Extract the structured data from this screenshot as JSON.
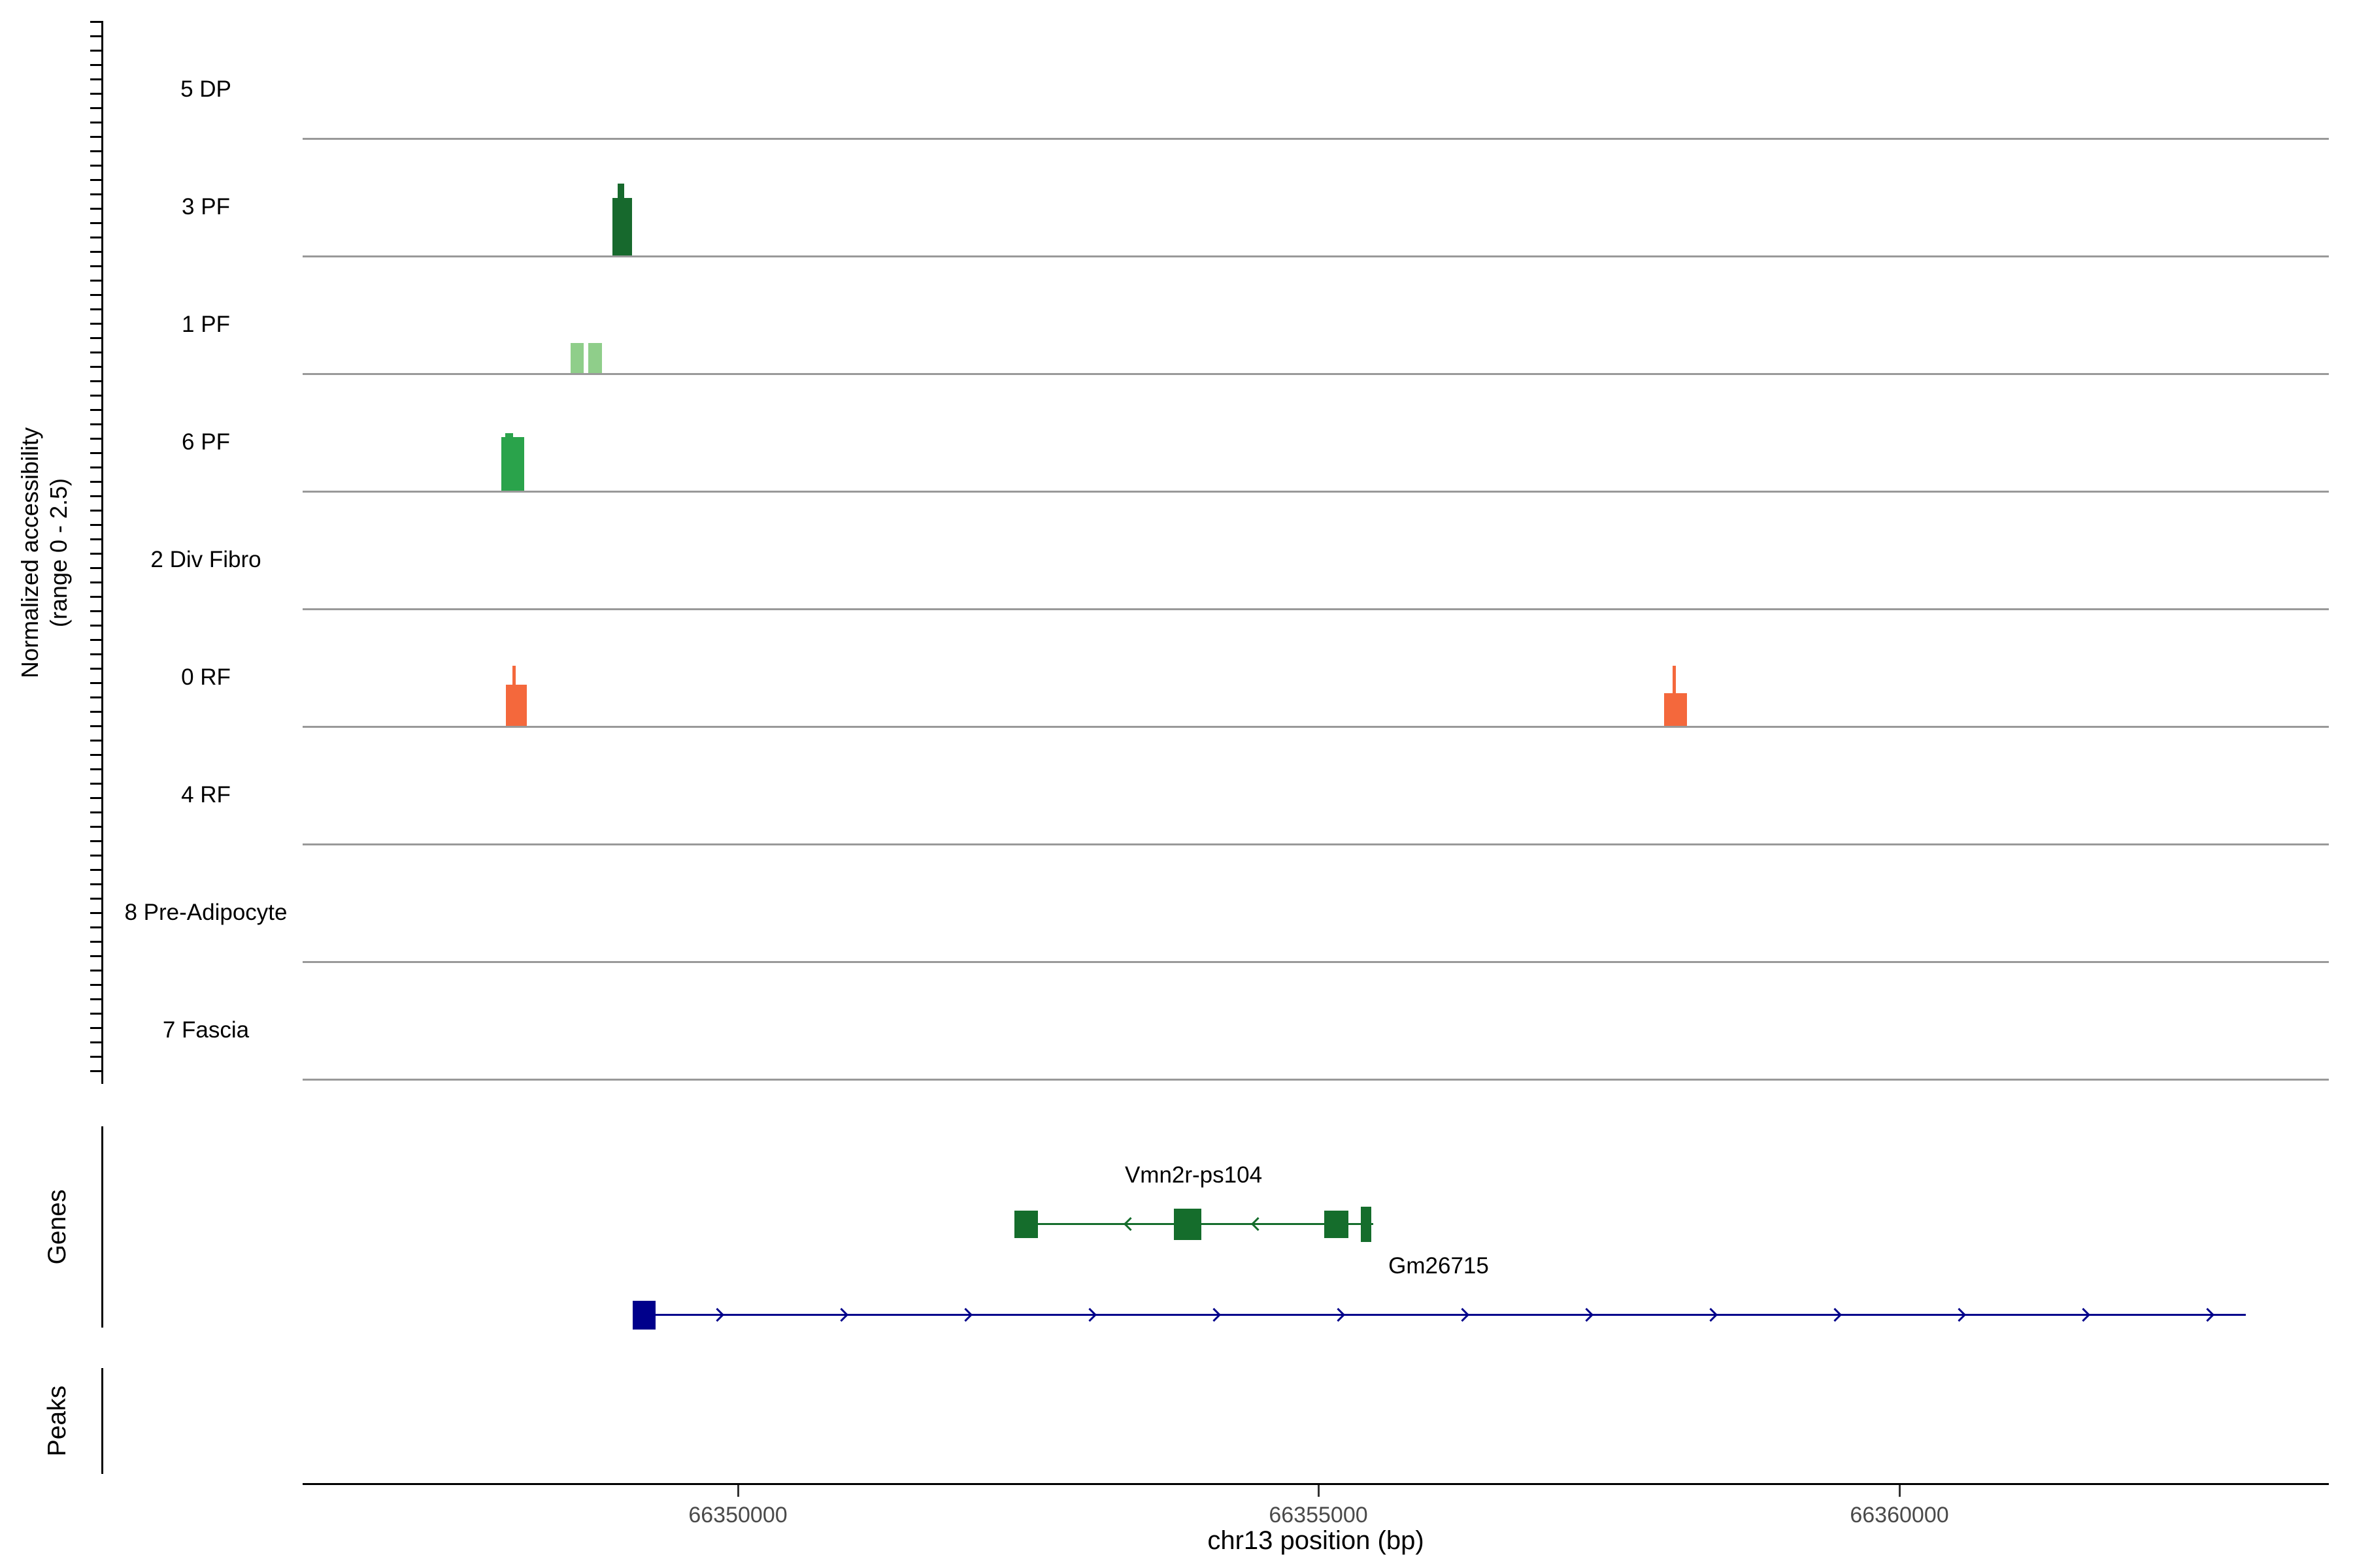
{
  "figure": {
    "y_axis_label_line1": "Normalized accessibility",
    "y_axis_label_line2": "(range 0 - 2.5)",
    "genes_section_label": "Genes",
    "peaks_section_label": "Peaks",
    "x_axis_title": "chr13 position (bp)"
  },
  "chart_data": {
    "type": "area",
    "subtype": "genome_accessibility_tracks",
    "title": "",
    "x_axis": {
      "label": "chr13 position (bp)",
      "chromosome": "chr13",
      "xmin": 66346250,
      "xmax": 66363700,
      "ticks": [
        66350000,
        66355000,
        66360000
      ]
    },
    "y_axis": {
      "label": "Normalized accessibility (range 0 - 2.5)",
      "range": [
        0,
        2.5
      ]
    },
    "baseline_color": "#999999",
    "tracks": [
      {
        "name": "5 DP",
        "color": null,
        "peaks": []
      },
      {
        "name": "3 PF",
        "color": "#17692d",
        "peaks": [
          {
            "start": 66348920,
            "end": 66349090,
            "value": 1.3
          },
          {
            "start": 66348965,
            "end": 66349020,
            "value": 1.62
          }
        ]
      },
      {
        "name": "1 PF",
        "color": "#8fce8a",
        "peaks": [
          {
            "start": 66348560,
            "end": 66348672,
            "value": 0.68
          },
          {
            "start": 66348712,
            "end": 66348828,
            "value": 0.68
          }
        ]
      },
      {
        "name": "6 PF",
        "color": "#2aa34b",
        "peaks": [
          {
            "start": 66347960,
            "end": 66348155,
            "value": 1.2
          },
          {
            "start": 66347995,
            "end": 66348065,
            "value": 1.3
          }
        ]
      },
      {
        "name": "2 Div Fibro",
        "color": null,
        "peaks": []
      },
      {
        "name": "0 RF",
        "color": "#f4683c",
        "peaks": [
          {
            "start": 66348000,
            "end": 66348180,
            "value": 0.93
          },
          {
            "start": 66348055,
            "end": 66348082,
            "value": 1.35
          },
          {
            "start": 66357975,
            "end": 66358170,
            "value": 0.73
          },
          {
            "start": 66358050,
            "end": 66358078,
            "value": 1.35
          }
        ]
      },
      {
        "name": "4 RF",
        "color": null,
        "peaks": []
      },
      {
        "name": "8 Pre-Adipocyte",
        "color": null,
        "peaks": []
      },
      {
        "name": "7 Fascia",
        "color": null,
        "peaks": []
      }
    ],
    "genes": [
      {
        "name": "Vmn2r-ps104",
        "color": "#156d2c",
        "strand": "-",
        "start": 66352380,
        "end": 66355470,
        "exons": [
          {
            "start": 66352380,
            "end": 66352585,
            "h": 42
          },
          {
            "start": 66353755,
            "end": 66353990,
            "h": 48
          },
          {
            "start": 66355050,
            "end": 66355260,
            "h": 42
          },
          {
            "start": 66355365,
            "end": 66355455,
            "h": 54
          }
        ],
        "arrow_positions": [
          66353380,
          66354480
        ]
      },
      {
        "name": "Gm26715",
        "color": "#00008b",
        "strand": "+",
        "start": 66349090,
        "end": 66362980,
        "exons": [
          {
            "start": 66349090,
            "end": 66349285,
            "h": 44
          }
        ],
        "arrow_spacing_px": 190
      }
    ],
    "peaks_track": []
  }
}
